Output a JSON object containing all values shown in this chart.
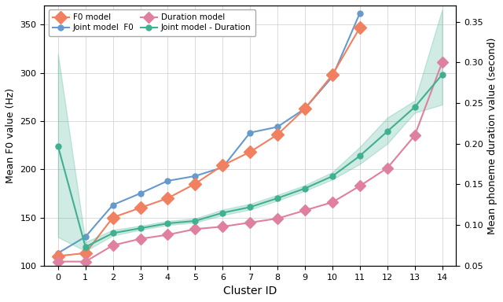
{
  "cluster_ids": [
    0,
    1,
    2,
    3,
    4,
    5,
    6,
    7,
    8,
    9,
    10,
    11,
    12,
    13,
    14
  ],
  "f0_model_x": [
    0,
    1,
    2,
    3,
    4,
    5,
    6,
    7,
    8,
    9,
    10,
    11
  ],
  "f0_model_vals": [
    110,
    113,
    150,
    160,
    170,
    185,
    204,
    218,
    236,
    263,
    298,
    347
  ],
  "joint_f0_x": [
    0,
    1,
    2,
    3,
    4,
    5,
    6,
    7,
    8,
    9,
    10,
    11
  ],
  "joint_f0_vals": [
    113,
    130,
    163,
    175,
    188,
    193,
    202,
    238,
    244,
    263,
    296,
    362
  ],
  "duration_model_x": [
    0,
    1,
    2,
    3,
    4,
    5,
    6,
    7,
    8,
    9,
    10,
    11,
    12,
    13,
    14
  ],
  "duration_model_vals": [
    0.055,
    0.055,
    0.075,
    0.083,
    0.088,
    0.095,
    0.098,
    0.103,
    0.108,
    0.118,
    0.128,
    0.148,
    0.17,
    0.21,
    0.3
  ],
  "joint_dur_x": [
    0,
    1,
    2,
    3,
    4,
    5,
    6,
    7,
    8,
    9,
    10,
    11,
    12,
    13,
    14
  ],
  "joint_dur_vals": [
    0.197,
    0.073,
    0.09,
    0.096,
    0.102,
    0.105,
    0.115,
    0.122,
    0.133,
    0.145,
    0.16,
    0.185,
    0.215,
    0.245,
    0.285
  ],
  "joint_dur_lower": [
    0.085,
    0.068,
    0.087,
    0.094,
    0.1,
    0.103,
    0.112,
    0.119,
    0.13,
    0.142,
    0.156,
    0.175,
    0.2,
    0.238,
    0.248
  ],
  "joint_dur_upper": [
    0.31,
    0.079,
    0.094,
    0.099,
    0.105,
    0.108,
    0.119,
    0.126,
    0.137,
    0.149,
    0.165,
    0.196,
    0.232,
    0.253,
    0.365
  ],
  "f0_model_color": "#F08060",
  "joint_f0_color": "#6699CC",
  "duration_model_color": "#E080A0",
  "joint_duration_color": "#40B090",
  "left_ylabel": "Mean F0 value (Hz)",
  "right_ylabel": "Mean phoneme duration value (second)",
  "xlabel": "Cluster ID",
  "left_ylim": [
    100,
    370
  ],
  "right_ylim": [
    0.05,
    0.37
  ],
  "left_yticks": [
    100,
    150,
    200,
    250,
    300,
    350
  ],
  "right_yticks": [
    0.05,
    0.1,
    0.15,
    0.2,
    0.25,
    0.3,
    0.35
  ],
  "legend_labels": [
    "F0 model",
    "Joint model  F0",
    "Duration model",
    "Joint model - Duration"
  ],
  "figsize": [
    6.4,
    3.84
  ],
  "dpi": 100
}
